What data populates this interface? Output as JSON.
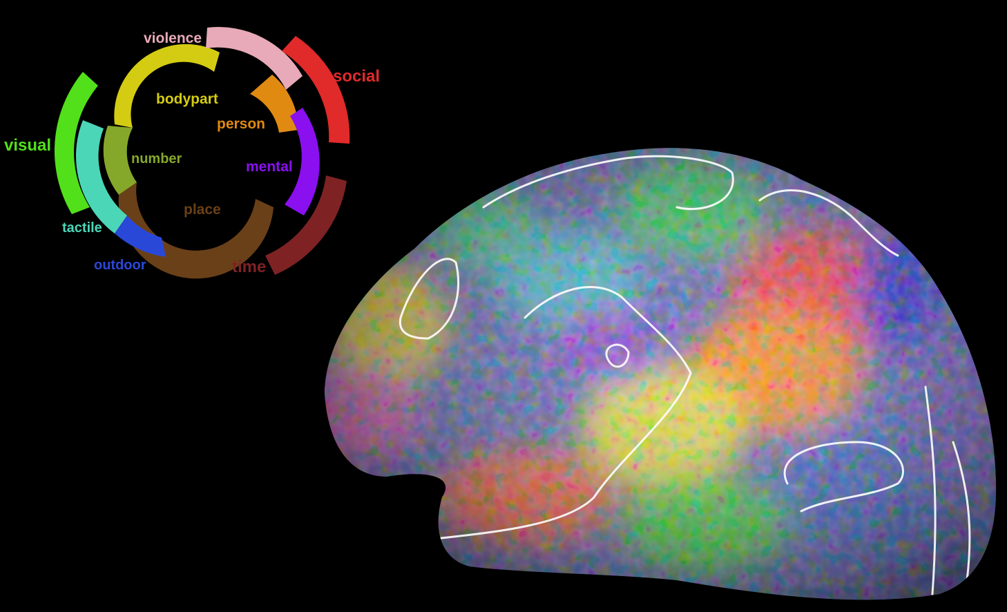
{
  "categories": {
    "violence": {
      "label": "violence",
      "color": "#e8aab8"
    },
    "social": {
      "label": "social",
      "color": "#e12a2a"
    },
    "bodypart": {
      "label": "bodypart",
      "color": "#d4cc12"
    },
    "person": {
      "label": "person",
      "color": "#e08a12"
    },
    "visual": {
      "label": "visual",
      "color": "#52e01a"
    },
    "number": {
      "label": "number",
      "color": "#86a82a"
    },
    "mental": {
      "label": "mental",
      "color": "#8a10f0"
    },
    "tactile": {
      "label": "tactile",
      "color": "#4cd6b8"
    },
    "place": {
      "label": "place",
      "color": "#6a4018"
    },
    "outdoor": {
      "label": "outdoor",
      "color": "#2a48d8"
    },
    "time": {
      "label": "time",
      "color": "#7e2224"
    }
  },
  "brain": {
    "icon": "cortical-surface-map",
    "background": "#000000"
  }
}
